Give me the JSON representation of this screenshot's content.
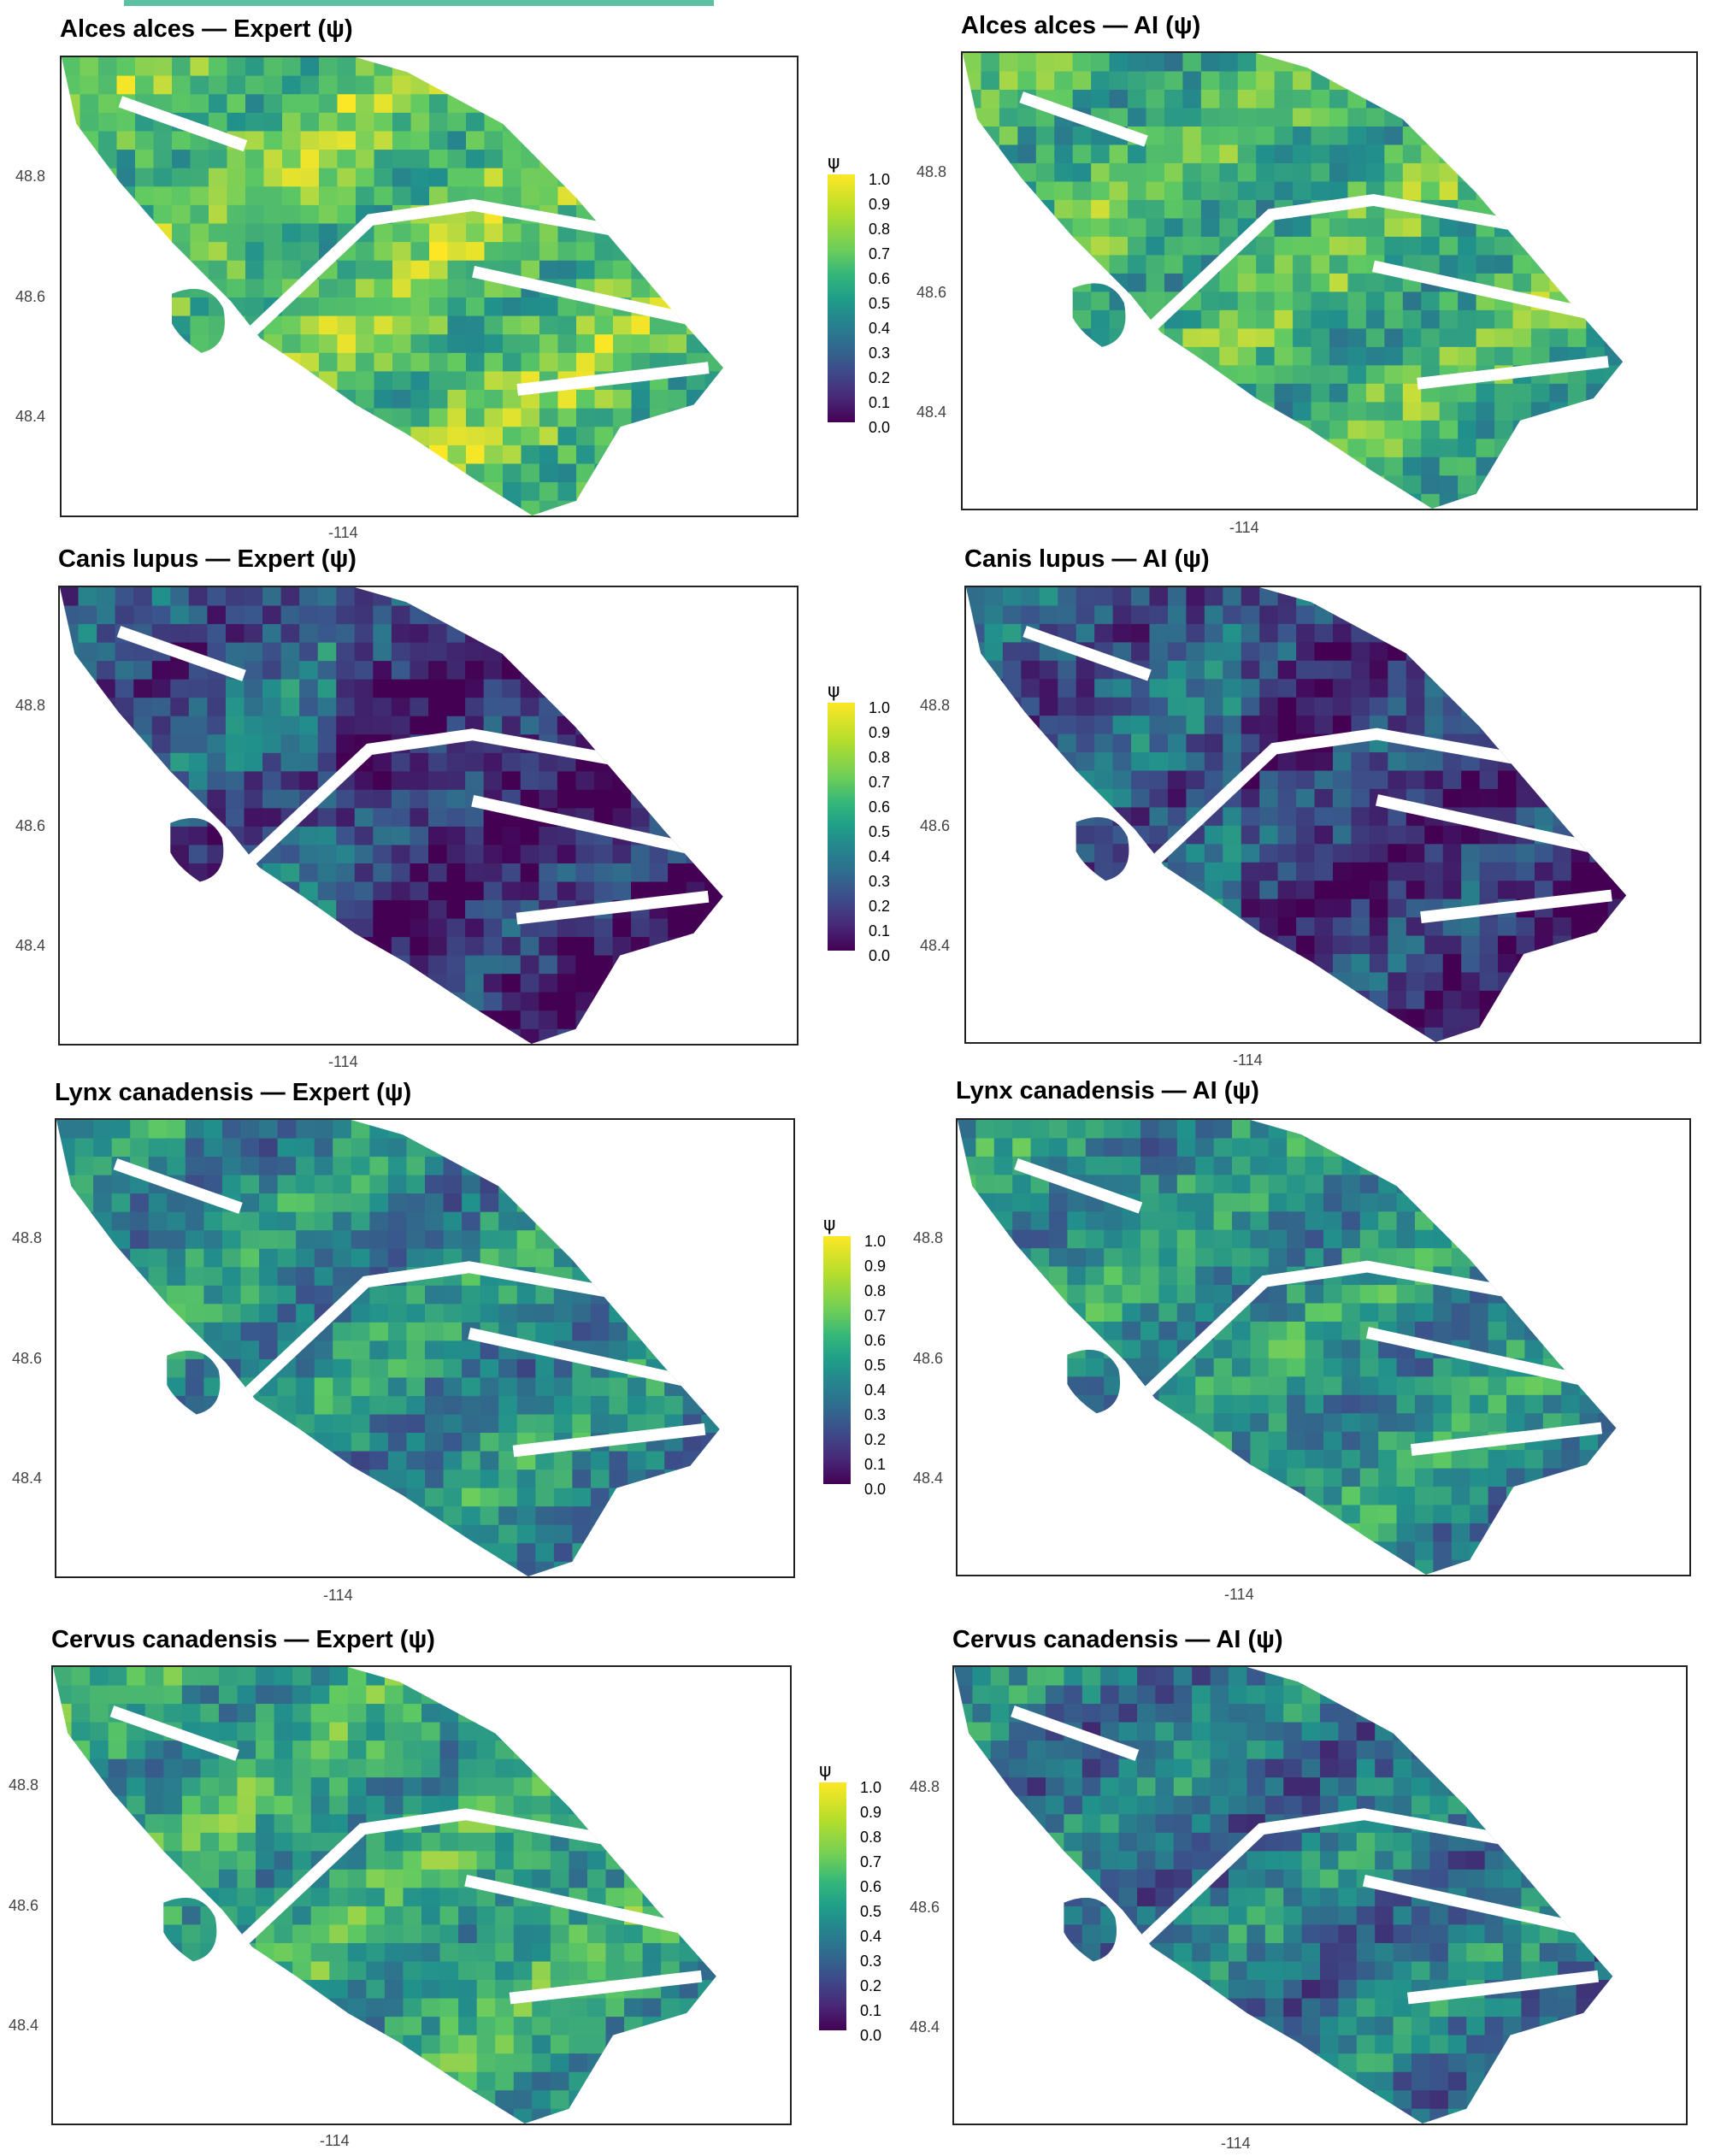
{
  "figure": {
    "legend": {
      "title": "ψ",
      "labels": [
        "1.0",
        "0.9",
        "0.8",
        "0.7",
        "0.6",
        "0.5",
        "0.4",
        "0.3",
        "0.2",
        "0.1",
        "0.0"
      ],
      "colors": [
        "#440154",
        "#3e4989",
        "#26828e",
        "#35b779",
        "#fde725"
      ]
    },
    "y_ticks": [
      "48.8",
      "48.6",
      "48.4"
    ],
    "x_tick": "-114",
    "rows": [
      {
        "expert_title": "Alces alces — Expert (ψ)",
        "ai_title": "Alces alces — AI (ψ)",
        "expert_level": 0.72,
        "ai_level": 0.65
      },
      {
        "expert_title": "Canis lupus — Expert (ψ)",
        "ai_title": "Canis lupus — AI (ψ)",
        "expert_level": 0.22,
        "ai_level": 0.25
      },
      {
        "expert_title": "Lynx canadensis — Expert (ψ)",
        "ai_title": "Lynx canadensis — AI (ψ)",
        "expert_level": 0.48,
        "ai_level": 0.5
      },
      {
        "expert_title": "Cervus canadensis — Expert (ψ)",
        "ai_title": "Cervus canadensis — AI (ψ)",
        "expert_level": 0.58,
        "ai_level": 0.4
      }
    ]
  }
}
